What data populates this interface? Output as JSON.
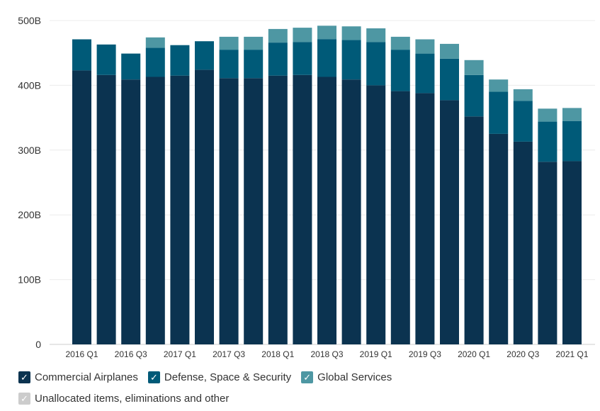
{
  "chart_data": {
    "type": "bar",
    "stacked": true,
    "categories": [
      "2016 Q1",
      "2016 Q2",
      "2016 Q3",
      "2016 Q4",
      "2017 Q1",
      "2017 Q2",
      "2017 Q3",
      "2017 Q4",
      "2018 Q1",
      "2018 Q2",
      "2018 Q3",
      "2018 Q4",
      "2019 Q1",
      "2019 Q2",
      "2019 Q3",
      "2019 Q4",
      "2020 Q1",
      "2020 Q2",
      "2020 Q3",
      "2020 Q4",
      "2021 Q1"
    ],
    "xtick_labels": [
      "2016 Q1",
      "2016 Q3",
      "2017 Q1",
      "2017 Q3",
      "2018 Q1",
      "2018 Q3",
      "2019 Q1",
      "2019 Q3",
      "2020 Q1",
      "2020 Q3",
      "2021 Q1"
    ],
    "yticks": [
      "0",
      "100B",
      "200B",
      "300B",
      "400B",
      "500B"
    ],
    "ylim": [
      0,
      500
    ],
    "grid": true,
    "legend_position": "bottom-left",
    "series": [
      {
        "name": "Commercial Airplanes",
        "color": "#0b3350",
        "values": [
          423,
          416,
          409,
          413,
          415,
          424,
          411,
          411,
          415,
          416,
          413,
          409,
          400,
          391,
          388,
          377,
          352,
          325,
          313,
          282,
          283
        ]
      },
      {
        "name": "Defense, Space & Security",
        "color": "#005a78",
        "values": [
          48,
          47,
          40,
          45,
          47,
          44,
          44,
          44,
          51,
          51,
          58,
          61,
          67,
          64,
          61,
          64,
          64,
          65,
          63,
          62,
          62
        ]
      },
      {
        "name": "Global Services",
        "color": "#4e97a3",
        "values": [
          0,
          0,
          0,
          16,
          0,
          0,
          20,
          20,
          21,
          22,
          21,
          21,
          21,
          20,
          22,
          23,
          23,
          19,
          18,
          20,
          20
        ]
      },
      {
        "name": "Unallocated items, eliminations and other",
        "color": "#cccccc",
        "values": [
          0,
          0,
          0,
          0,
          0,
          0,
          0,
          0,
          0,
          0,
          0,
          0,
          0,
          0,
          0,
          0,
          0,
          0,
          0,
          0,
          0
        ]
      }
    ]
  }
}
